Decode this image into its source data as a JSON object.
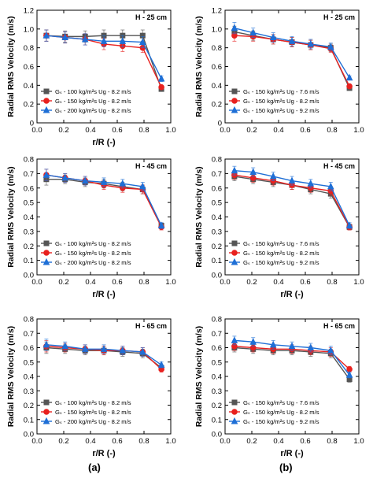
{
  "panel_labels": [
    "(a)",
    "(b)"
  ],
  "chart_data": [
    {
      "type": "line",
      "title": "H - 25 cm",
      "xlabel": "r/R (-)",
      "ylabel": "Radial RMS Velocity (m/s)",
      "xlim": [
        0,
        1.0
      ],
      "ylim": [
        0,
        1.2
      ],
      "xticks": [
        "0.0",
        "0.2",
        "0.4",
        "0.6",
        "0.8",
        "1.0"
      ],
      "yticks": [
        "0",
        "0.2",
        "0.4",
        "0.6",
        "0.8",
        "1.0",
        "1.2"
      ],
      "legend_position": "bottom-left",
      "x": [
        0.07,
        0.21,
        0.36,
        0.5,
        0.64,
        0.79,
        0.93
      ],
      "series": [
        {
          "name": "Gₛ - 100 kg/m²s Ug - 8.2 m/s",
          "color": "#555555",
          "marker": "square",
          "values": [
            0.93,
            0.92,
            0.92,
            0.93,
            0.93,
            0.93,
            0.36
          ],
          "err": [
            0.06,
            0.06,
            0.06,
            0.06,
            0.06,
            0.06,
            0.02
          ]
        },
        {
          "name": "Gₛ - 150 kg/m²s Ug - 8.2 m/s",
          "color": "#e8211f",
          "marker": "circle",
          "values": [
            0.93,
            0.91,
            0.89,
            0.84,
            0.82,
            0.8,
            0.38
          ],
          "err": [
            0.06,
            0.06,
            0.06,
            0.06,
            0.06,
            0.05,
            0.02
          ]
        },
        {
          "name": "Gₛ - 200 kg/m²s Ug - 8.2 m/s",
          "color": "#1f6fd6",
          "marker": "triangle",
          "values": [
            0.93,
            0.91,
            0.89,
            0.87,
            0.87,
            0.86,
            0.47
          ],
          "err": [
            0.06,
            0.06,
            0.06,
            0.06,
            0.06,
            0.06,
            0.03
          ]
        }
      ]
    },
    {
      "type": "line",
      "title": "H - 25 cm",
      "xlabel": "",
      "ylabel": "Radial RMS Velocity (m/s)",
      "xlim": [
        0,
        1.0
      ],
      "ylim": [
        0,
        1.2
      ],
      "xticks": [
        "0.0",
        "0.2",
        "0.4",
        "0.6",
        "0.8",
        "1.0"
      ],
      "yticks": [
        "0",
        "0.2",
        "0.4",
        "0.6",
        "0.8",
        "1.0",
        "1.2"
      ],
      "legend_position": "bottom-left",
      "x": [
        0.07,
        0.21,
        0.36,
        0.5,
        0.64,
        0.79,
        0.93
      ],
      "series": [
        {
          "name": "Gₛ - 150 kg/m²s Ug - 7.6 m/s",
          "color": "#555555",
          "marker": "square",
          "values": [
            0.97,
            0.93,
            0.89,
            0.86,
            0.83,
            0.8,
            0.37
          ],
          "err": [
            0.06,
            0.05,
            0.05,
            0.05,
            0.05,
            0.04,
            0.02
          ]
        },
        {
          "name": "Gₛ - 150 kg/m²s Ug - 8.2 m/s",
          "color": "#e8211f",
          "marker": "circle",
          "values": [
            0.93,
            0.92,
            0.89,
            0.86,
            0.83,
            0.79,
            0.39
          ],
          "err": [
            0.06,
            0.05,
            0.05,
            0.05,
            0.05,
            0.04,
            0.02
          ]
        },
        {
          "name": "Gₛ - 150 kg/m²s Ug - 9.2 m/s",
          "color": "#1f6fd6",
          "marker": "triangle",
          "values": [
            1.01,
            0.96,
            0.91,
            0.87,
            0.84,
            0.81,
            0.48
          ],
          "err": [
            0.06,
            0.05,
            0.05,
            0.05,
            0.05,
            0.04,
            0.02
          ]
        }
      ]
    },
    {
      "type": "line",
      "title": "H - 45 cm",
      "xlabel": "r/R (-)",
      "ylabel": "Radial RMS Velocity (m/s)",
      "xlim": [
        0,
        1.0
      ],
      "ylim": [
        0,
        0.8
      ],
      "xticks": [
        "0.0",
        "0.2",
        "0.4",
        "0.6",
        "0.8",
        "1.0"
      ],
      "yticks": [
        "0.0",
        "0.1",
        "0.2",
        "0.3",
        "0.4",
        "0.5",
        "0.6",
        "0.7",
        "0.8"
      ],
      "legend_position": "bottom-left",
      "x": [
        0.07,
        0.21,
        0.36,
        0.5,
        0.64,
        0.79,
        0.93
      ],
      "series": [
        {
          "name": "Gₛ - 100 kg/m²s Ug - 8.2 m/s",
          "color": "#555555",
          "marker": "square",
          "values": [
            0.66,
            0.66,
            0.64,
            0.63,
            0.61,
            0.59,
            0.34
          ],
          "err": [
            0.04,
            0.03,
            0.03,
            0.03,
            0.03,
            0.03,
            0.02
          ]
        },
        {
          "name": "Gₛ - 150 kg/m²s Ug - 8.2 m/s",
          "color": "#e8211f",
          "marker": "circle",
          "values": [
            0.69,
            0.67,
            0.65,
            0.62,
            0.6,
            0.59,
            0.33
          ],
          "err": [
            0.04,
            0.03,
            0.03,
            0.03,
            0.03,
            0.03,
            0.02
          ]
        },
        {
          "name": "Gₛ - 200 kg/m²s Ug - 8.2 m/s",
          "color": "#1f6fd6",
          "marker": "triangle",
          "values": [
            0.69,
            0.67,
            0.65,
            0.64,
            0.63,
            0.61,
            0.34
          ],
          "err": [
            0.04,
            0.03,
            0.03,
            0.03,
            0.03,
            0.03,
            0.02
          ]
        }
      ]
    },
    {
      "type": "line",
      "title": "H - 45 cm",
      "xlabel": "r/R (-)",
      "ylabel": "Radial RMS Velocity (m/s)",
      "xlim": [
        0,
        1.0
      ],
      "ylim": [
        0,
        0.8
      ],
      "xticks": [
        "0.0",
        "0.2",
        "0.4",
        "0.6",
        "0.8",
        "1.0"
      ],
      "yticks": [
        "0.0",
        "0.1",
        "0.2",
        "0.3",
        "0.4",
        "0.5",
        "0.6",
        "0.7",
        "0.8"
      ],
      "legend_position": "bottom-left",
      "x": [
        0.07,
        0.21,
        0.36,
        0.5,
        0.64,
        0.79,
        0.93
      ],
      "series": [
        {
          "name": "Gₛ - 150 kg/m²s Ug - 7.6 m/s",
          "color": "#555555",
          "marker": "square",
          "values": [
            0.68,
            0.66,
            0.64,
            0.62,
            0.59,
            0.56,
            0.33
          ],
          "err": [
            0.03,
            0.03,
            0.03,
            0.03,
            0.03,
            0.03,
            0.02
          ]
        },
        {
          "name": "Gₛ - 150 kg/m²s Ug - 8.2 m/s",
          "color": "#e8211f",
          "marker": "circle",
          "values": [
            0.69,
            0.67,
            0.65,
            0.62,
            0.6,
            0.58,
            0.33
          ],
          "err": [
            0.03,
            0.03,
            0.03,
            0.03,
            0.03,
            0.03,
            0.02
          ]
        },
        {
          "name": "Gₛ - 150 kg/m²s Ug - 9.2 m/s",
          "color": "#1f6fd6",
          "marker": "triangle",
          "values": [
            0.72,
            0.71,
            0.68,
            0.65,
            0.63,
            0.61,
            0.34
          ],
          "err": [
            0.03,
            0.03,
            0.03,
            0.03,
            0.03,
            0.03,
            0.02
          ]
        }
      ]
    },
    {
      "type": "line",
      "title": "H - 65 cm",
      "xlabel": "r/R (-)",
      "ylabel": "Radial RMS Velocity (m/s)",
      "xlim": [
        0,
        1.0
      ],
      "ylim": [
        0,
        0.8
      ],
      "xticks": [
        "0.0",
        "0.2",
        "0.4",
        "0.6",
        "0.8",
        "1.0"
      ],
      "yticks": [
        "0.0",
        "0.1",
        "0.2",
        "0.3",
        "0.4",
        "0.5",
        "0.6",
        "0.7",
        "0.8"
      ],
      "legend_position": "bottom-left",
      "x": [
        0.07,
        0.21,
        0.36,
        0.5,
        0.64,
        0.79,
        0.93
      ],
      "series": [
        {
          "name": "Gₛ - 100 kg/m²s Ug - 8.2 m/s",
          "color": "#555555",
          "marker": "square",
          "values": [
            0.6,
            0.59,
            0.58,
            0.58,
            0.57,
            0.56,
            0.46
          ],
          "err": [
            0.04,
            0.03,
            0.03,
            0.03,
            0.03,
            0.03,
            0.02
          ]
        },
        {
          "name": "Gₛ - 150 kg/m²s Ug - 8.2 m/s",
          "color": "#e8211f",
          "marker": "circle",
          "values": [
            0.61,
            0.6,
            0.59,
            0.58,
            0.58,
            0.57,
            0.45
          ],
          "err": [
            0.04,
            0.03,
            0.03,
            0.03,
            0.03,
            0.03,
            0.02
          ]
        },
        {
          "name": "Gₛ - 200 kg/m²s Ug - 8.2 m/s",
          "color": "#1f6fd6",
          "marker": "triangle",
          "values": [
            0.62,
            0.61,
            0.59,
            0.59,
            0.58,
            0.57,
            0.48
          ],
          "err": [
            0.04,
            0.03,
            0.03,
            0.03,
            0.03,
            0.03,
            0.02
          ]
        }
      ]
    },
    {
      "type": "line",
      "title": "H - 65 cm",
      "xlabel": "r/R (-)",
      "ylabel": "Radial RMS Velocity (m/s)",
      "xlim": [
        0,
        1.0
      ],
      "ylim": [
        0,
        0.8
      ],
      "xticks": [
        "0.0",
        "0.2",
        "0.4",
        "0.6",
        "0.8",
        "1.0"
      ],
      "yticks": [
        "0.0",
        "0.1",
        "0.2",
        "0.3",
        "0.4",
        "0.5",
        "0.6",
        "0.7",
        "0.8"
      ],
      "legend_position": "bottom-left",
      "x": [
        0.07,
        0.21,
        0.36,
        0.5,
        0.64,
        0.79,
        0.93
      ],
      "series": [
        {
          "name": "Gₛ - 150 kg/m²s Ug - 7.6 m/s",
          "color": "#555555",
          "marker": "square",
          "values": [
            0.6,
            0.59,
            0.58,
            0.58,
            0.57,
            0.56,
            0.38
          ],
          "err": [
            0.03,
            0.03,
            0.03,
            0.03,
            0.03,
            0.03,
            0.02
          ]
        },
        {
          "name": "Gₛ - 150 kg/m²s Ug - 8.2 m/s",
          "color": "#e8211f",
          "marker": "circle",
          "values": [
            0.61,
            0.6,
            0.59,
            0.59,
            0.58,
            0.57,
            0.45
          ],
          "err": [
            0.03,
            0.03,
            0.03,
            0.03,
            0.03,
            0.03,
            0.02
          ]
        },
        {
          "name": "Gₛ - 150 kg/m²s Ug - 9.2 m/s",
          "color": "#1f6fd6",
          "marker": "triangle",
          "values": [
            0.65,
            0.64,
            0.62,
            0.61,
            0.6,
            0.58,
            0.41
          ],
          "err": [
            0.03,
            0.03,
            0.03,
            0.03,
            0.03,
            0.03,
            0.02
          ]
        }
      ]
    }
  ]
}
